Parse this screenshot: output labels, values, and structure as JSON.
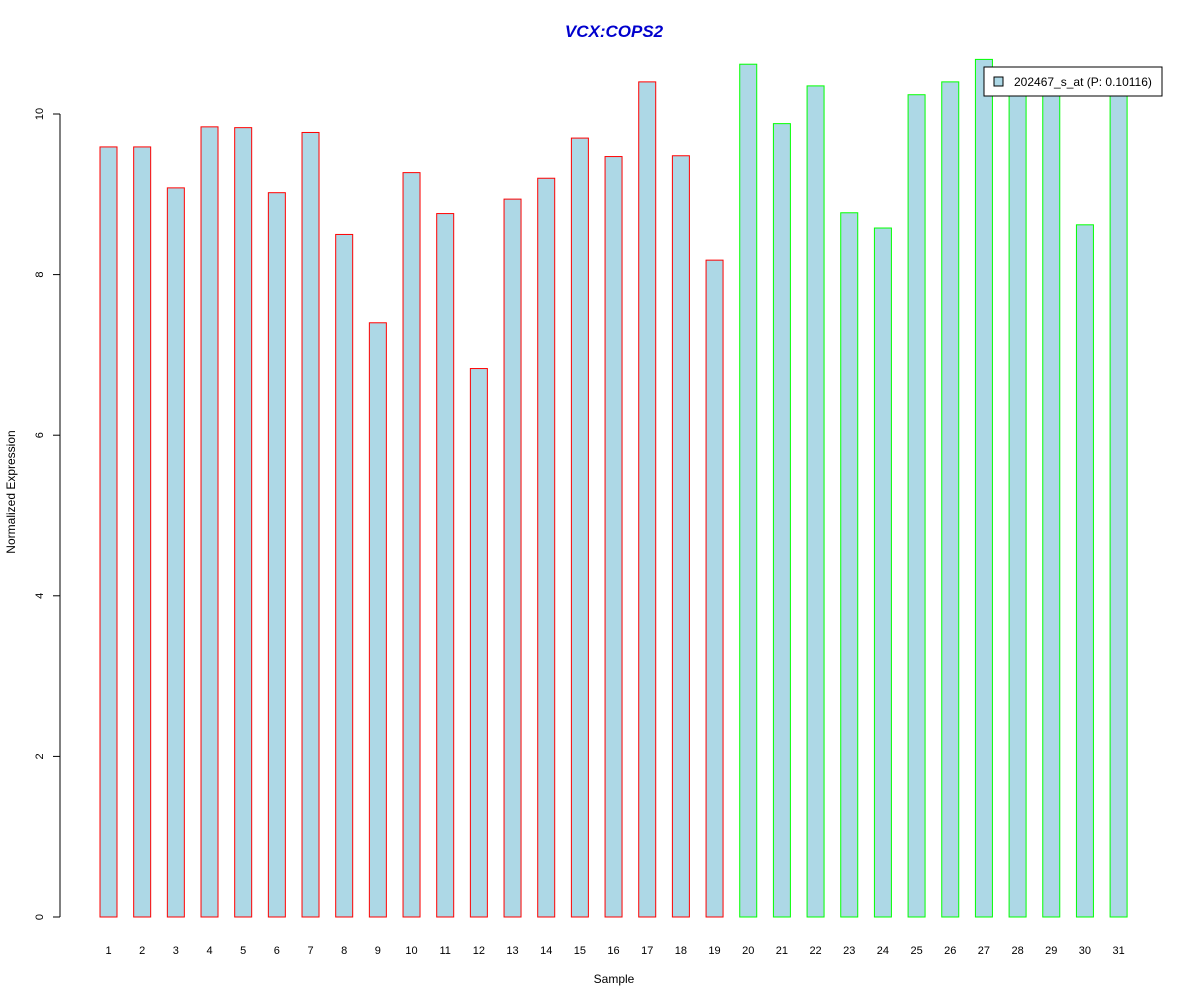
{
  "chart_data": {
    "type": "bar",
    "title": "VCX:COPS2",
    "xlabel": "Sample",
    "ylabel": "Normalized Expression",
    "ylim": [
      0,
      10.65
    ],
    "yticks": [
      0,
      2,
      4,
      6,
      8,
      10
    ],
    "categories": [
      "1",
      "2",
      "3",
      "4",
      "5",
      "6",
      "7",
      "8",
      "9",
      "10",
      "11",
      "12",
      "13",
      "14",
      "15",
      "16",
      "17",
      "18",
      "19",
      "20",
      "21",
      "22",
      "23",
      "24",
      "25",
      "26",
      "27",
      "28",
      "29",
      "30",
      "31"
    ],
    "series": [
      {
        "name": "202467_s_at (P: 0.10116)",
        "values": [
          9.59,
          9.59,
          9.08,
          9.84,
          9.83,
          9.02,
          9.77,
          8.5,
          7.4,
          9.27,
          8.76,
          6.83,
          8.94,
          9.2,
          9.7,
          9.47,
          10.4,
          9.48,
          8.18,
          10.62,
          9.88,
          10.35,
          8.77,
          8.58,
          10.24,
          10.4,
          10.68,
          10.4,
          10.4,
          8.62,
          10.4
        ]
      }
    ],
    "group_of_bar": [
      1,
      1,
      1,
      1,
      1,
      1,
      1,
      1,
      1,
      1,
      1,
      1,
      1,
      1,
      1,
      1,
      1,
      1,
      1,
      2,
      2,
      2,
      2,
      2,
      2,
      2,
      2,
      2,
      2,
      2,
      2
    ],
    "legend_position": "top-right",
    "grid": false,
    "colors": {
      "bar_fill": "#add8e6",
      "group1_border": "#ff0000",
      "group2_border": "#00ff00",
      "title": "#0000cd",
      "axis": "#000000",
      "background": "#ffffff"
    }
  }
}
